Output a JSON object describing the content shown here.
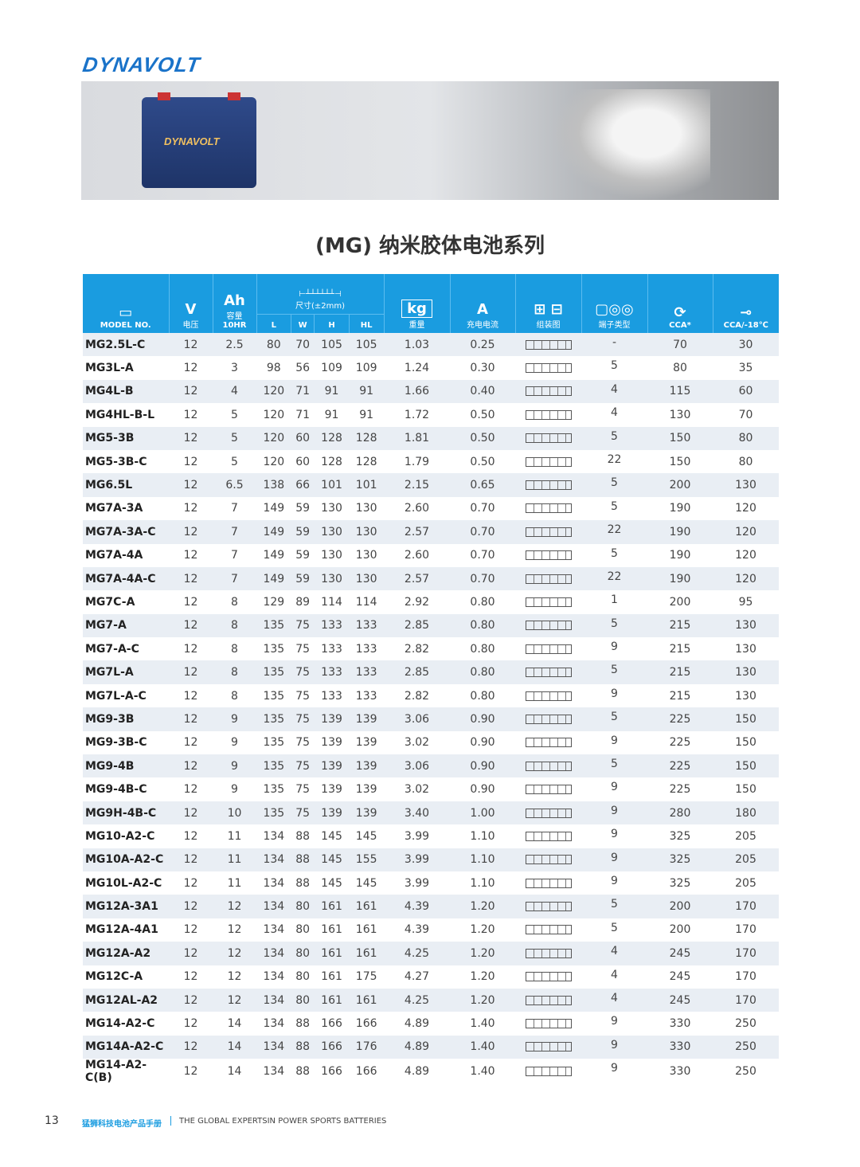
{
  "brand": "DYNAVOLT",
  "title": "(MG) 纳米胶体电池系列",
  "headers": {
    "model": "MODEL NO.",
    "v": "V",
    "v_sub": "电压",
    "ah": "Ah",
    "ah_sub": "容量",
    "ah_sub2": "10HR",
    "size": "尺寸(±2mm)",
    "l": "L",
    "w": "W",
    "h": "H",
    "hl": "HL",
    "kg": "kg",
    "kg_sub": "重量",
    "a": "A",
    "a_sub": "充电电流",
    "layout": "组装图",
    "terminal": "端子类型",
    "cca": "CCA*",
    "cca18": "CCA/-18℃"
  },
  "rows": [
    [
      "MG2.5L-C",
      "12",
      "2.5",
      "80",
      "70",
      "105",
      "105",
      "1.03",
      "0.25",
      "-",
      "70",
      "30"
    ],
    [
      "MG3L-A",
      "12",
      "3",
      "98",
      "56",
      "109",
      "109",
      "1.24",
      "0.30",
      "5",
      "80",
      "35"
    ],
    [
      "MG4L-B",
      "12",
      "4",
      "120",
      "71",
      "91",
      "91",
      "1.66",
      "0.40",
      "4",
      "115",
      "60"
    ],
    [
      "MG4HL-B-L",
      "12",
      "5",
      "120",
      "71",
      "91",
      "91",
      "1.72",
      "0.50",
      "4",
      "130",
      "70"
    ],
    [
      "MG5-3B",
      "12",
      "5",
      "120",
      "60",
      "128",
      "128",
      "1.81",
      "0.50",
      "5",
      "150",
      "80"
    ],
    [
      "MG5-3B-C",
      "12",
      "5",
      "120",
      "60",
      "128",
      "128",
      "1.79",
      "0.50",
      "22",
      "150",
      "80"
    ],
    [
      "MG6.5L",
      "12",
      "6.5",
      "138",
      "66",
      "101",
      "101",
      "2.15",
      "0.65",
      "5",
      "200",
      "130"
    ],
    [
      "MG7A-3A",
      "12",
      "7",
      "149",
      "59",
      "130",
      "130",
      "2.60",
      "0.70",
      "5",
      "190",
      "120"
    ],
    [
      "MG7A-3A-C",
      "12",
      "7",
      "149",
      "59",
      "130",
      "130",
      "2.57",
      "0.70",
      "22",
      "190",
      "120"
    ],
    [
      "MG7A-4A",
      "12",
      "7",
      "149",
      "59",
      "130",
      "130",
      "2.60",
      "0.70",
      "5",
      "190",
      "120"
    ],
    [
      "MG7A-4A-C",
      "12",
      "7",
      "149",
      "59",
      "130",
      "130",
      "2.57",
      "0.70",
      "22",
      "190",
      "120"
    ],
    [
      "MG7C-A",
      "12",
      "8",
      "129",
      "89",
      "114",
      "114",
      "2.92",
      "0.80",
      "1",
      "200",
      "95"
    ],
    [
      "MG7-A",
      "12",
      "8",
      "135",
      "75",
      "133",
      "133",
      "2.85",
      "0.80",
      "5",
      "215",
      "130"
    ],
    [
      "MG7-A-C",
      "12",
      "8",
      "135",
      "75",
      "133",
      "133",
      "2.82",
      "0.80",
      "9",
      "215",
      "130"
    ],
    [
      "MG7L-A",
      "12",
      "8",
      "135",
      "75",
      "133",
      "133",
      "2.85",
      "0.80",
      "5",
      "215",
      "130"
    ],
    [
      "MG7L-A-C",
      "12",
      "8",
      "135",
      "75",
      "133",
      "133",
      "2.82",
      "0.80",
      "9",
      "215",
      "130"
    ],
    [
      "MG9-3B",
      "12",
      "9",
      "135",
      "75",
      "139",
      "139",
      "3.06",
      "0.90",
      "5",
      "225",
      "150"
    ],
    [
      "MG9-3B-C",
      "12",
      "9",
      "135",
      "75",
      "139",
      "139",
      "3.02",
      "0.90",
      "9",
      "225",
      "150"
    ],
    [
      "MG9-4B",
      "12",
      "9",
      "135",
      "75",
      "139",
      "139",
      "3.06",
      "0.90",
      "5",
      "225",
      "150"
    ],
    [
      "MG9-4B-C",
      "12",
      "9",
      "135",
      "75",
      "139",
      "139",
      "3.02",
      "0.90",
      "9",
      "225",
      "150"
    ],
    [
      "MG9H-4B-C",
      "12",
      "10",
      "135",
      "75",
      "139",
      "139",
      "3.40",
      "1.00",
      "9",
      "280",
      "180"
    ],
    [
      "MG10-A2-C",
      "12",
      "11",
      "134",
      "88",
      "145",
      "145",
      "3.99",
      "1.10",
      "9",
      "325",
      "205"
    ],
    [
      "MG10A-A2-C",
      "12",
      "11",
      "134",
      "88",
      "145",
      "155",
      "3.99",
      "1.10",
      "9",
      "325",
      "205"
    ],
    [
      "MG10L-A2-C",
      "12",
      "11",
      "134",
      "88",
      "145",
      "145",
      "3.99",
      "1.10",
      "9",
      "325",
      "205"
    ],
    [
      "MG12A-3A1",
      "12",
      "12",
      "134",
      "80",
      "161",
      "161",
      "4.39",
      "1.20",
      "5",
      "200",
      "170"
    ],
    [
      "MG12A-4A1",
      "12",
      "12",
      "134",
      "80",
      "161",
      "161",
      "4.39",
      "1.20",
      "5",
      "200",
      "170"
    ],
    [
      "MG12A-A2",
      "12",
      "12",
      "134",
      "80",
      "161",
      "161",
      "4.25",
      "1.20",
      "4",
      "245",
      "170"
    ],
    [
      "MG12C-A",
      "12",
      "12",
      "134",
      "80",
      "161",
      "175",
      "4.27",
      "1.20",
      "4",
      "245",
      "170"
    ],
    [
      "MG12AL-A2",
      "12",
      "12",
      "134",
      "80",
      "161",
      "161",
      "4.25",
      "1.20",
      "4",
      "245",
      "170"
    ],
    [
      "MG14-A2-C",
      "12",
      "14",
      "134",
      "88",
      "166",
      "166",
      "4.89",
      "1.40",
      "9",
      "330",
      "250"
    ],
    [
      "MG14A-A2-C",
      "12",
      "14",
      "134",
      "88",
      "166",
      "176",
      "4.89",
      "1.40",
      "9",
      "330",
      "250"
    ],
    [
      "MG14-A2-C(B)",
      "12",
      "14",
      "134",
      "88",
      "166",
      "166",
      "4.89",
      "1.40",
      "9",
      "330",
      "250"
    ]
  ],
  "footer": {
    "page": "13",
    "cn": "猛狮科技电池产品手册",
    "en": "THE GLOBAL EXPERTSIN POWER SPORTS BATTERIES"
  },
  "colors": {
    "header": "#1a9ce0",
    "brand": "#1a73c9",
    "row_alt": "#e9eef4"
  }
}
